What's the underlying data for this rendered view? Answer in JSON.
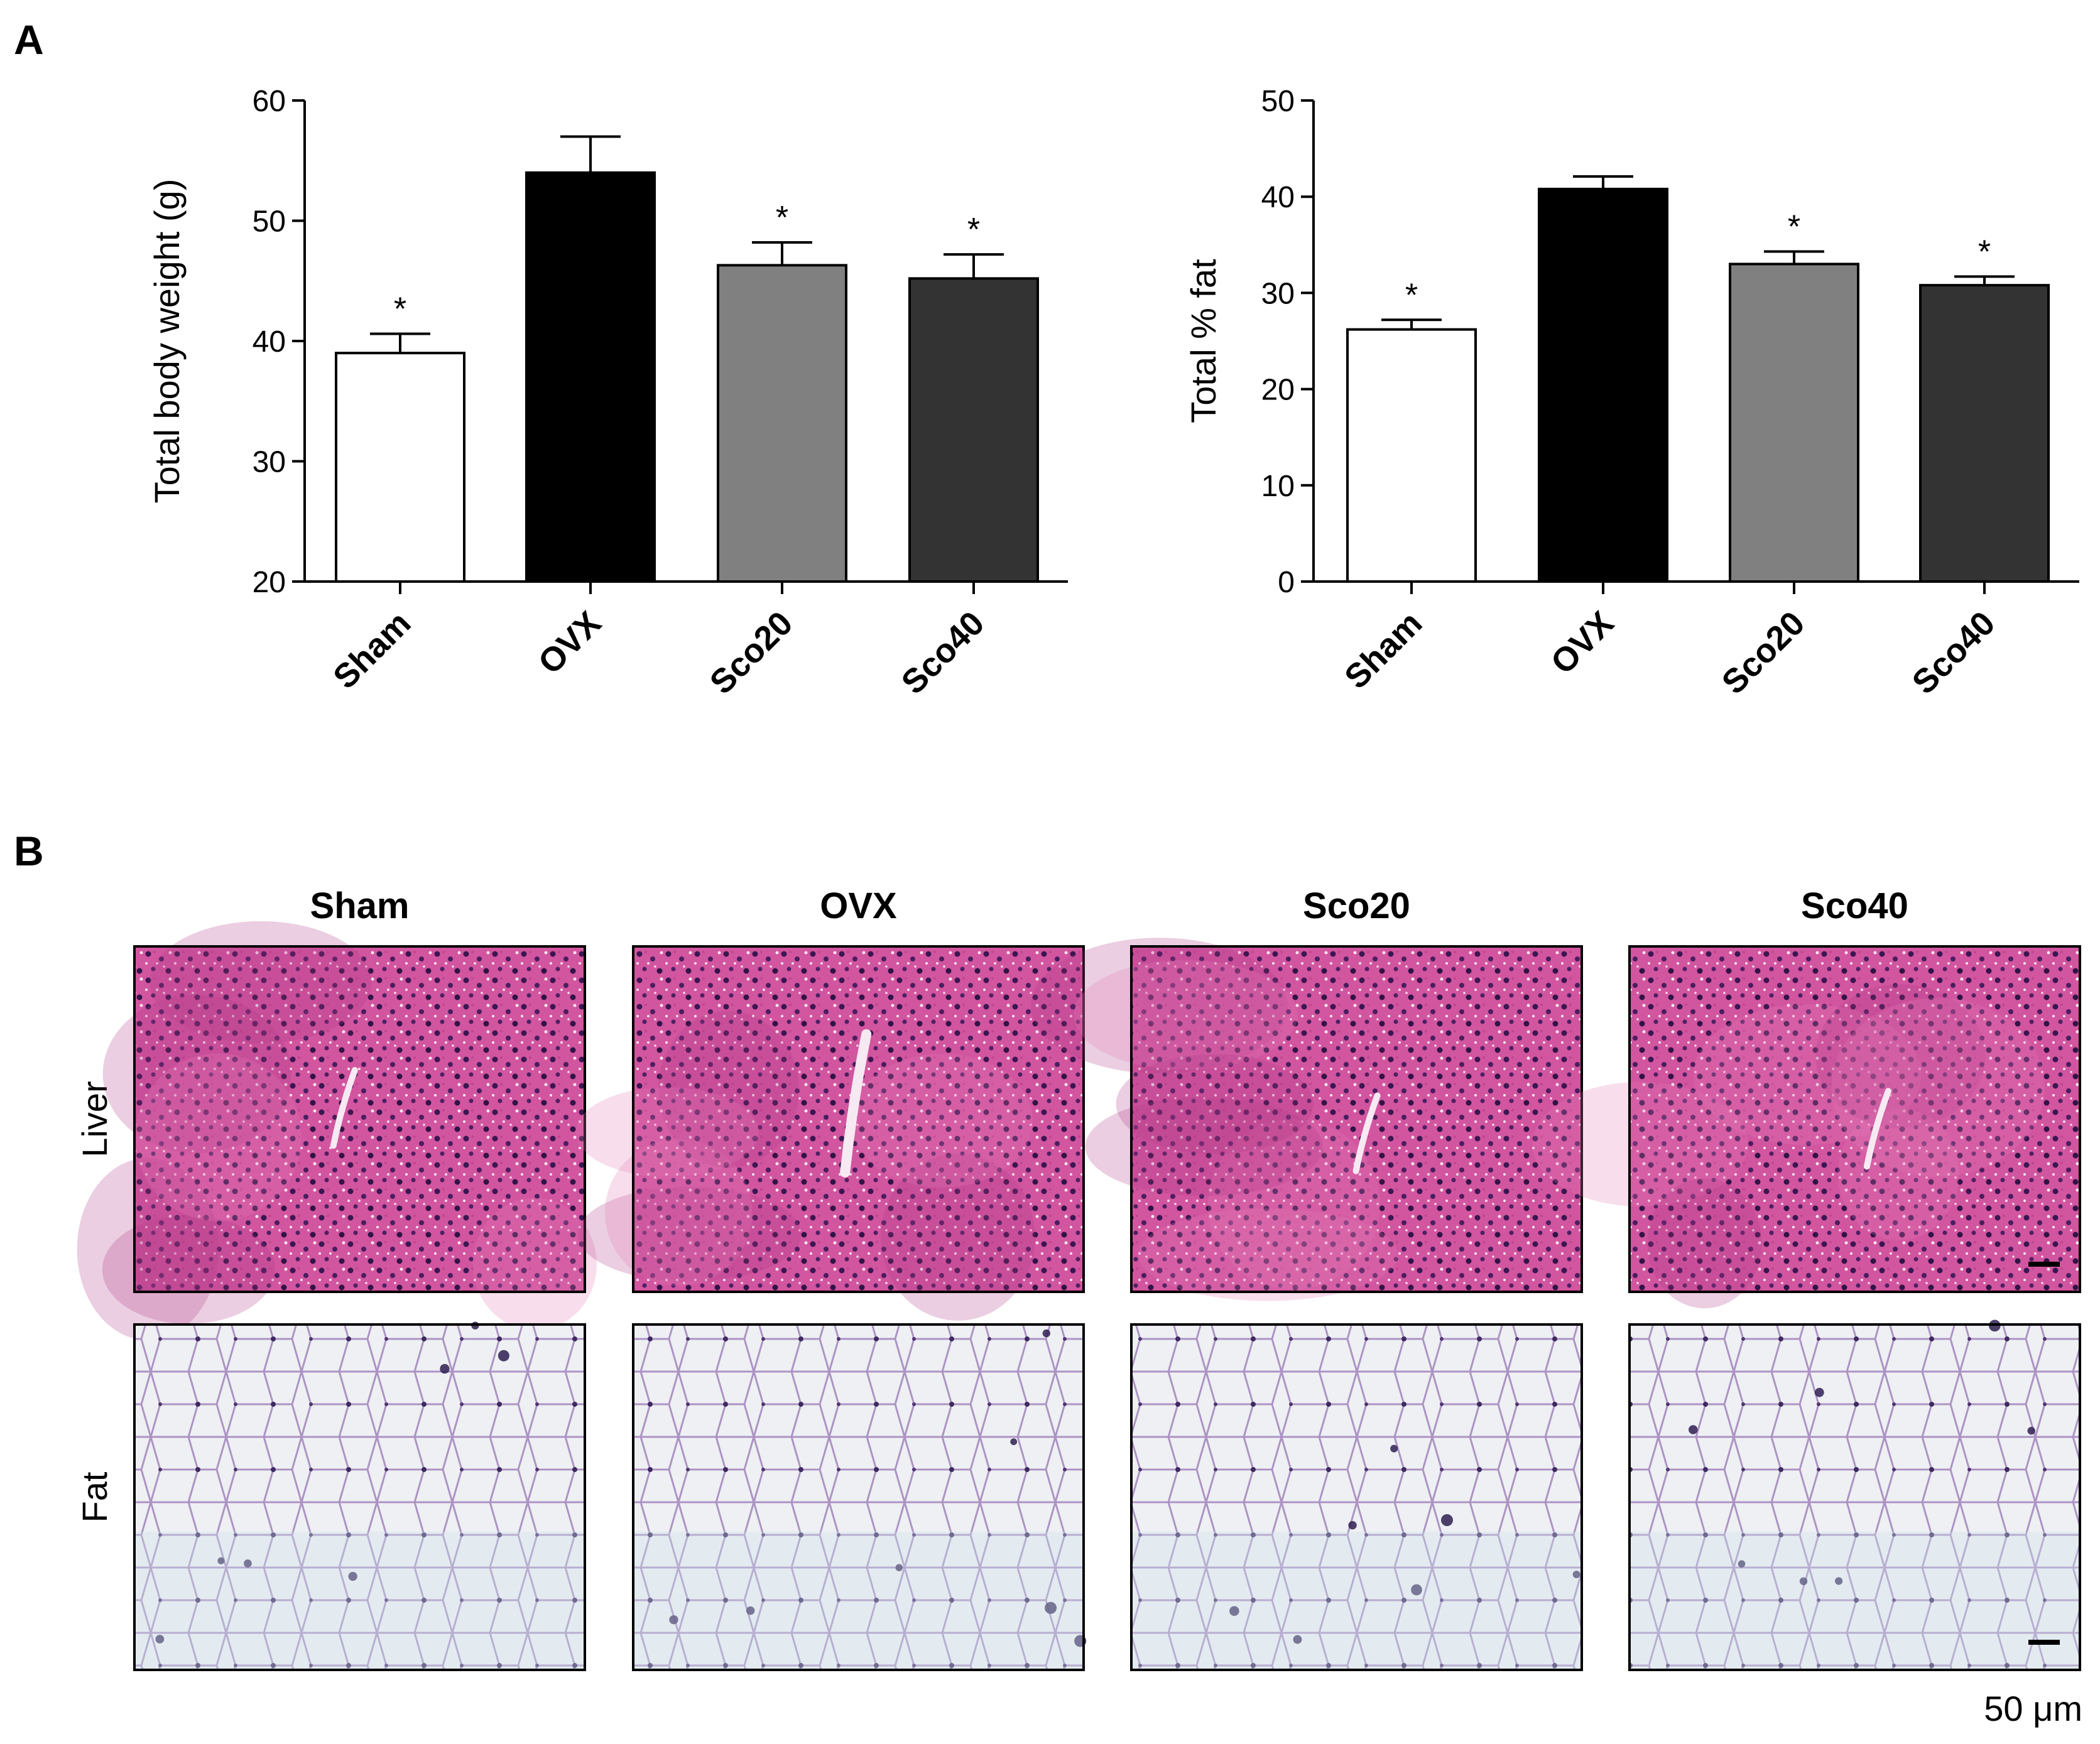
{
  "panel_labels": {
    "a": "A",
    "b": "B"
  },
  "chart_data": [
    {
      "type": "bar",
      "categories": [
        "Sham",
        "OVX",
        "Sco20",
        "Sco40"
      ],
      "values": [
        39,
        54,
        46.3,
        45.2
      ],
      "errors": [
        1.6,
        3.0,
        1.9,
        2.0
      ],
      "significance": [
        "*",
        "",
        "*",
        "*"
      ],
      "bar_colors": [
        "#ffffff",
        "#000000",
        "#808080",
        "#333333"
      ],
      "title": "",
      "xlabel": "",
      "ylabel": "Total body weight (g)",
      "ylim": [
        20,
        60
      ],
      "yticks": [
        "20",
        "30",
        "40",
        "50",
        "60"
      ],
      "grid": false,
      "legend": "none"
    },
    {
      "type": "bar",
      "categories": [
        "Sham",
        "OVX",
        "Sco20",
        "Sco40"
      ],
      "values": [
        26.2,
        40.8,
        33,
        30.8
      ],
      "errors": [
        1.0,
        1.3,
        1.3,
        0.9
      ],
      "significance": [
        "*",
        "",
        "*",
        "*"
      ],
      "bar_colors": [
        "#ffffff",
        "#000000",
        "#808080",
        "#333333"
      ],
      "title": "",
      "xlabel": "",
      "ylabel": "Total % fat",
      "ylim": [
        0,
        50
      ],
      "yticks": [
        "0",
        "10",
        "20",
        "30",
        "40",
        "50"
      ],
      "grid": false,
      "legend": "none"
    }
  ],
  "histology": {
    "column_headers": [
      "Sham",
      "OVX",
      "Sco20",
      "Sco40"
    ],
    "row_headers": [
      "Liver",
      "Fat"
    ],
    "scale_bar_label": "50 μm",
    "colors": {
      "liver_tissue": "#cf4f9c",
      "liver_nuclei": "#3a1850",
      "fat_background": "#f2f0f4",
      "fat_membrane": "#a98ec0",
      "fat_nuclei": "#3b2a5a"
    }
  }
}
